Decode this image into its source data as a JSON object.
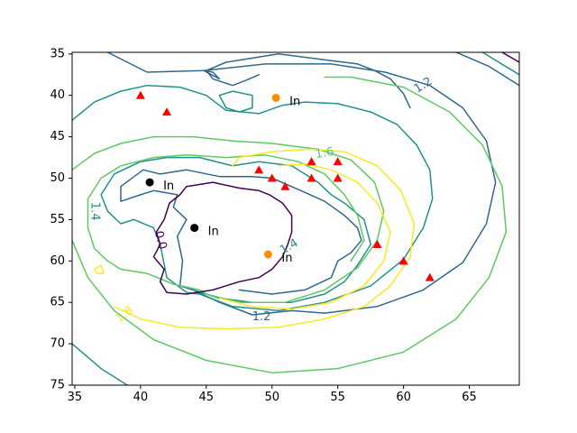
{
  "chart_data": {
    "type": "contour",
    "xlim": [
      34.8,
      68.8
    ],
    "ylim": [
      75,
      34.8
    ],
    "y_inverted": true,
    "x_ticks": [
      35,
      40,
      45,
      50,
      55,
      60,
      65
    ],
    "y_ticks": [
      35,
      40,
      45,
      50,
      55,
      60,
      65,
      70,
      75
    ],
    "grid": false,
    "colors": {
      "level_0_0": "#440154",
      "level_1_2": "#31688e",
      "level_1_4": "#21918c",
      "level_1_6": "#5ec962",
      "level_1_8": "#fde725",
      "triangles": "#ff0000",
      "black_points": "#000000",
      "orange_points": "#ff8c00"
    },
    "contour_labels": [
      {
        "text": "1.2",
        "x": 61.5,
        "y": 38.8,
        "color": "#31688e",
        "rotation": -32
      },
      {
        "text": "1.6",
        "x": 54.0,
        "y": 47.0,
        "color": "#5ec962",
        "rotation": -10
      },
      {
        "text": "1.4",
        "x": 36.5,
        "y": 54.0,
        "color": "#21918c",
        "rotation": 90
      },
      {
        "text": "0.0",
        "x": 41.5,
        "y": 57.5,
        "color": "#440154",
        "rotation": 75
      },
      {
        "text": "1.8",
        "x": 38.8,
        "y": 66.5,
        "color": "#fde725",
        "rotation": -35
      },
      {
        "text": "1.2",
        "x": 49.2,
        "y": 66.8,
        "color": "#31688e",
        "rotation": 0
      },
      {
        "text": "1.4",
        "x": 51.3,
        "y": 58.3,
        "color": "#21918c",
        "rotation": -30
      }
    ],
    "triangles": [
      {
        "x": 40.0,
        "y": 40.0
      },
      {
        "x": 42.0,
        "y": 42.0
      },
      {
        "x": 49.0,
        "y": 49.0
      },
      {
        "x": 50.0,
        "y": 50.0
      },
      {
        "x": 51.0,
        "y": 51.0
      },
      {
        "x": 53.0,
        "y": 48.0
      },
      {
        "x": 53.0,
        "y": 50.0
      },
      {
        "x": 55.0,
        "y": 48.0
      },
      {
        "x": 55.0,
        "y": 50.0
      },
      {
        "x": 58.0,
        "y": 58.0
      },
      {
        "x": 60.0,
        "y": 60.0
      },
      {
        "x": 62.0,
        "y": 62.0
      }
    ],
    "labeled_points": [
      {
        "x": 40.7,
        "y": 50.5,
        "label": "In",
        "color": "#000000"
      },
      {
        "x": 44.1,
        "y": 56.0,
        "label": "In",
        "color": "#000000"
      },
      {
        "x": 50.3,
        "y": 40.3,
        "label": "In",
        "color": "#ff8c00"
      },
      {
        "x": 49.7,
        "y": 59.2,
        "label": "In",
        "color": "#ff8c00"
      }
    ],
    "contours": [
      {
        "level": "1.2",
        "color": "#31688e",
        "points": [
          [
            37.5,
            34.8
          ],
          [
            40.5,
            37.2
          ],
          [
            44.8,
            37.0
          ],
          [
            49.5,
            36.2
          ],
          [
            54.5,
            36.2
          ],
          [
            58.6,
            37.2
          ],
          [
            62.0,
            38.8
          ],
          [
            64.5,
            41.5
          ],
          [
            66.3,
            45.5
          ],
          [
            67.0,
            50.5
          ],
          [
            66.3,
            55.5
          ],
          [
            64.5,
            60.2
          ],
          [
            61.5,
            63.5
          ],
          [
            58.0,
            65.5
          ],
          [
            54.0,
            66.3
          ],
          [
            51.5,
            66.0
          ],
          [
            48.5,
            66.5
          ],
          [
            46.0,
            65.0
          ],
          [
            44.0,
            63.5
          ],
          [
            43.0,
            63.0
          ],
          [
            43.2,
            60.0
          ],
          [
            42.8,
            57.0
          ],
          [
            43.5,
            55.0
          ],
          [
            42.5,
            53.5
          ],
          [
            42.8,
            52.0
          ],
          [
            41.0,
            51.5
          ],
          [
            40.0,
            52.0
          ],
          [
            38.5,
            52.8
          ],
          [
            38.5,
            51.0
          ],
          [
            40.2,
            49.0
          ],
          [
            41.5,
            49.5
          ],
          [
            43.5,
            49.0
          ],
          [
            46.0,
            49.8
          ],
          [
            48.5,
            49.8
          ],
          [
            50.0,
            50.0
          ],
          [
            52.2,
            51.5
          ],
          [
            54.0,
            52.8
          ],
          [
            55.5,
            54.5
          ],
          [
            56.5,
            56.0
          ],
          [
            56.8,
            57.5
          ],
          [
            56.0,
            59.0
          ],
          [
            55.0,
            60.0
          ],
          [
            54.5,
            62.0
          ],
          [
            52.5,
            63.5
          ],
          [
            50.0,
            64.0
          ],
          [
            47.5,
            63.5
          ]
        ]
      },
      {
        "level": "1.2",
        "color": "#31688e",
        "points": [
          [
            49.0,
            37.5
          ],
          [
            48.0,
            38.2
          ],
          [
            47.0,
            38.8
          ],
          [
            45.5,
            38.0
          ],
          [
            45.0,
            37.0
          ],
          [
            46.5,
            36.0
          ],
          [
            48.5,
            35.5
          ],
          [
            50.5,
            35.0
          ],
          [
            52.5,
            35.4
          ],
          [
            54.5,
            35.8
          ],
          [
            56.5,
            36.2
          ],
          [
            57.8,
            37.0
          ],
          [
            59.0,
            38.0
          ],
          [
            60.0,
            39.8
          ],
          [
            60.5,
            41.5
          ]
        ]
      },
      {
        "level": "1.2",
        "color": "#31688e",
        "points": [
          [
            44.8,
            37.0
          ],
          [
            46.0,
            38.0
          ],
          [
            45.5,
            37.2
          ],
          [
            44.8,
            37.0
          ]
        ]
      },
      {
        "level": "1.2",
        "color": "#31688e",
        "points": [
          [
            64.0,
            34.8
          ],
          [
            66.5,
            36.5
          ],
          [
            68.8,
            38.8
          ]
        ]
      },
      {
        "level": "1.4",
        "color": "#21918c",
        "points": [
          [
            34.8,
            43.0
          ],
          [
            36.5,
            40.8
          ],
          [
            38.5,
            39.5
          ],
          [
            40.5,
            38.8
          ],
          [
            43.0,
            39.0
          ],
          [
            45.0,
            40.0
          ],
          [
            46.5,
            41.8
          ],
          [
            49.0,
            42.2
          ],
          [
            50.8,
            41.2
          ],
          [
            52.5,
            40.8
          ],
          [
            55.0,
            41.0
          ],
          [
            57.5,
            42.0
          ],
          [
            59.5,
            43.5
          ],
          [
            61.0,
            46.0
          ],
          [
            62.0,
            49.0
          ],
          [
            62.2,
            52.5
          ],
          [
            61.5,
            56.0
          ],
          [
            60.0,
            59.8
          ],
          [
            57.5,
            63.0
          ],
          [
            54.0,
            65.0
          ],
          [
            50.5,
            66.0
          ],
          [
            47.0,
            65.5
          ],
          [
            44.5,
            64.0
          ],
          [
            43.5,
            63.8
          ],
          [
            42.0,
            62.0
          ],
          [
            41.5,
            58.0
          ],
          [
            41.0,
            56.0
          ],
          [
            39.5,
            55.0
          ],
          [
            38.5,
            55.5
          ],
          [
            37.5,
            54.0
          ],
          [
            37.0,
            52.0
          ],
          [
            38.0,
            49.5
          ],
          [
            40.0,
            48.0
          ],
          [
            42.0,
            47.5
          ],
          [
            44.5,
            47.5
          ],
          [
            47.0,
            48.5
          ],
          [
            49.0,
            48.0
          ],
          [
            51.5,
            48.5
          ],
          [
            53.5,
            50.5
          ],
          [
            54.5,
            52.0
          ],
          [
            55.5,
            53.0
          ],
          [
            57.0,
            55.0
          ],
          [
            57.5,
            58.0
          ],
          [
            56.5,
            60.5
          ],
          [
            55.5,
            62.5
          ],
          [
            54.0,
            64.0
          ],
          [
            51.5,
            65.0
          ],
          [
            48.5,
            65.0
          ],
          [
            46.0,
            64.5
          ],
          [
            44.0,
            63.5
          ]
        ]
      },
      {
        "level": "1.4",
        "color": "#21918c",
        "points": [
          [
            34.8,
            70.0
          ],
          [
            37.0,
            73.0
          ],
          [
            39.0,
            75.0
          ]
        ]
      },
      {
        "level": "1.4",
        "color": "#21918c",
        "points": [
          [
            47.0,
            39.5
          ],
          [
            46.0,
            40.0
          ],
          [
            46.5,
            41.5
          ],
          [
            47.5,
            42.0
          ],
          [
            48.5,
            41.5
          ],
          [
            48.5,
            40.0
          ],
          [
            47.0,
            39.5
          ]
        ]
      },
      {
        "level": "1.4",
        "color": "#21918c",
        "points": [
          [
            66.0,
            34.8
          ],
          [
            68.8,
            37.5
          ]
        ]
      },
      {
        "level": "1.6",
        "color": "#5ec962",
        "points": [
          [
            34.8,
            49.0
          ],
          [
            36.5,
            47.0
          ],
          [
            38.5,
            45.8
          ],
          [
            41.0,
            45.0
          ],
          [
            44.0,
            45.0
          ],
          [
            47.0,
            45.5
          ],
          [
            50.0,
            45.8
          ],
          [
            53.5,
            46.5
          ],
          [
            56.0,
            47.8
          ],
          [
            57.8,
            50.5
          ],
          [
            58.5,
            54.0
          ],
          [
            58.0,
            57.5
          ],
          [
            56.5,
            60.8
          ],
          [
            54.0,
            63.5
          ],
          [
            51.0,
            65.0
          ],
          [
            47.5,
            65.0
          ],
          [
            45.0,
            64.0
          ],
          [
            44.5,
            63.5
          ],
          [
            42.5,
            62.8
          ],
          [
            40.5,
            61.5
          ],
          [
            38.5,
            61.0
          ],
          [
            37.5,
            60.0
          ],
          [
            36.5,
            58.5
          ],
          [
            36.0,
            56.0
          ],
          [
            36.0,
            52.5
          ],
          [
            37.0,
            50.0
          ],
          [
            38.5,
            48.5
          ],
          [
            41.0,
            47.5
          ],
          [
            43.5,
            47.2
          ],
          [
            46.5,
            47.5
          ],
          [
            49.5,
            47.2
          ],
          [
            52.0,
            48.0
          ],
          [
            54.0,
            49.5
          ],
          [
            55.5,
            52.0
          ],
          [
            56.5,
            54.5
          ],
          [
            57.0,
            57.5
          ],
          [
            56.0,
            60.0
          ]
        ]
      },
      {
        "level": "1.6",
        "color": "#5ec962",
        "points": [
          [
            34.8,
            57.5
          ],
          [
            36.0,
            62.0
          ],
          [
            38.0,
            66.0
          ],
          [
            41.0,
            69.5
          ],
          [
            45.0,
            72.0
          ],
          [
            50.0,
            73.5
          ],
          [
            55.0,
            73.0
          ],
          [
            60.0,
            71.0
          ],
          [
            64.0,
            67.0
          ],
          [
            66.5,
            62.0
          ],
          [
            67.8,
            56.5
          ],
          [
            67.5,
            51.0
          ],
          [
            66.0,
            46.0
          ],
          [
            63.5,
            42.0
          ],
          [
            60.0,
            39.0
          ],
          [
            56.0,
            37.8
          ],
          [
            54.0,
            37.8
          ]
        ]
      },
      {
        "level": "1.8",
        "color": "#fde725",
        "points": [
          [
            38.0,
            65.5
          ],
          [
            40.0,
            67.0
          ],
          [
            43.0,
            68.0
          ],
          [
            46.5,
            68.2
          ],
          [
            50.5,
            68.0
          ],
          [
            54.0,
            67.0
          ],
          [
            57.0,
            65.5
          ],
          [
            59.0,
            63.0
          ],
          [
            60.5,
            59.5
          ],
          [
            60.8,
            55.5
          ],
          [
            59.8,
            51.5
          ],
          [
            58.0,
            48.5
          ],
          [
            55.5,
            46.8
          ],
          [
            53.0,
            46.5
          ],
          [
            50.0,
            46.8
          ],
          [
            47.5,
            47.5
          ],
          [
            47.0,
            48.5
          ]
        ]
      },
      {
        "level": "1.8",
        "color": "#fde725",
        "points": [
          [
            46.0,
            64.5
          ],
          [
            48.5,
            65.5
          ],
          [
            51.5,
            65.8
          ],
          [
            54.5,
            65.0
          ],
          [
            57.0,
            63.0
          ],
          [
            58.5,
            60.0
          ],
          [
            59.0,
            56.5
          ],
          [
            58.0,
            53.0
          ],
          [
            56.5,
            50.5
          ],
          [
            54.5,
            49.0
          ],
          [
            52.5,
            48.3
          ],
          [
            50.5,
            48.5
          ]
        ]
      },
      {
        "level": "1.8",
        "color": "#fde725",
        "points": [
          [
            36.5,
            61.0
          ],
          [
            37.0,
            60.5
          ],
          [
            37.2,
            61.5
          ],
          [
            36.7,
            61.5
          ],
          [
            36.5,
            61.0
          ]
        ]
      },
      {
        "level": "0.0",
        "color": "#440154",
        "points": [
          [
            43.5,
            51.0
          ],
          [
            45.5,
            50.5
          ],
          [
            47.5,
            51.2
          ],
          [
            49.0,
            51.5
          ],
          [
            49.8,
            52.0
          ],
          [
            50.8,
            53.0
          ],
          [
            51.5,
            54.5
          ],
          [
            51.5,
            56.5
          ],
          [
            51.2,
            58.0
          ],
          [
            50.8,
            59.5
          ],
          [
            50.0,
            61.0
          ],
          [
            49.0,
            62.0
          ],
          [
            47.5,
            62.5
          ],
          [
            45.5,
            63.5
          ],
          [
            43.5,
            64.0
          ],
          [
            42.0,
            63.8
          ],
          [
            41.5,
            62.5
          ],
          [
            41.8,
            61.0
          ],
          [
            41.0,
            59.5
          ],
          [
            41.5,
            58.0
          ],
          [
            41.2,
            56.5
          ],
          [
            41.8,
            55.0
          ],
          [
            42.2,
            53.0
          ],
          [
            43.0,
            52.0
          ],
          [
            43.5,
            51.0
          ]
        ]
      },
      {
        "level": "0.0",
        "color": "#440154",
        "points": [
          [
            67.5,
            34.8
          ],
          [
            68.8,
            36.0
          ]
        ]
      }
    ]
  }
}
